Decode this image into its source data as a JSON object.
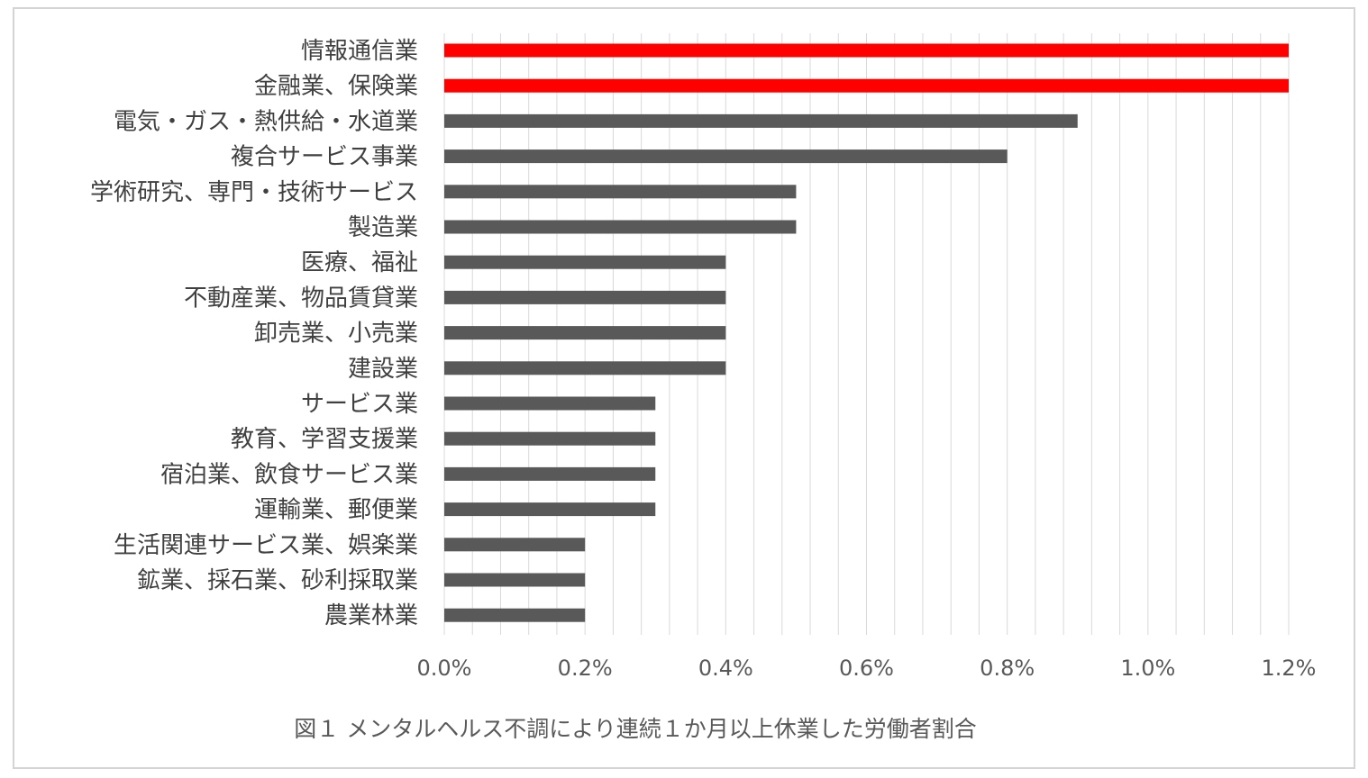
{
  "chart_data": {
    "type": "bar",
    "orientation": "horizontal",
    "categories": [
      "情報通信業",
      "金融業、保険業",
      "電気・ガス・熱供給・水道業",
      "複合サービス事業",
      "学術研究、専門・技術サービス",
      "製造業",
      "医療、福祉",
      "不動産業、物品賃貸業",
      "卸売業、小売業",
      "建設業",
      "サービス業",
      "教育、学習支援業",
      "宿泊業、飲食サービス業",
      "運輸業、郵便業",
      "生活関連サービス業、娯楽業",
      "鉱業、採石業、砂利採取業",
      "農業林業"
    ],
    "values": [
      1.2,
      1.2,
      0.9,
      0.8,
      0.5,
      0.5,
      0.4,
      0.4,
      0.4,
      0.4,
      0.3,
      0.3,
      0.3,
      0.3,
      0.2,
      0.2,
      0.2
    ],
    "value_unit": "%",
    "highlight_indices": [
      0,
      1
    ],
    "xlim": [
      0,
      1.2
    ],
    "x_ticks": [
      0.0,
      0.2,
      0.4,
      0.6,
      0.8,
      1.0,
      1.2
    ],
    "x_tick_labels": [
      "0.0%",
      "0.2%",
      "0.4%",
      "0.6%",
      "0.8%",
      "1.0%",
      "1.2%"
    ],
    "minor_grid_step": 0.04,
    "grid": true,
    "title": "",
    "caption": "図１ メンタルヘルス不調により連続１か月以上休業した労働者割合",
    "colors": {
      "bar_default": "#595959",
      "bar_highlight": "#ff0000",
      "grid": "#d9d9d9",
      "frame": "#d4d4d4"
    }
  }
}
